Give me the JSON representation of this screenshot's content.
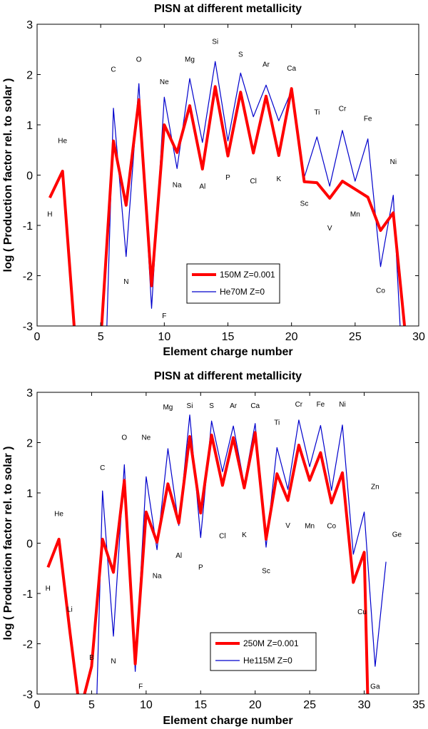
{
  "colors": {
    "series_a": "#ff0000",
    "series_b": "#0000cc",
    "axis": "#000000"
  },
  "chart_data": [
    {
      "type": "line",
      "title": "PISN at different metallicity",
      "xlabel": "Element charge number",
      "ylabel": "log ( Production factor rel. to solar )",
      "xlim": [
        0,
        30
      ],
      "ylim": [
        -3,
        3
      ],
      "xticks": [
        0,
        5,
        10,
        15,
        20,
        25,
        30
      ],
      "yticks": [
        -3,
        -2,
        -1,
        0,
        1,
        2,
        3
      ],
      "legend_position": "bottom-center",
      "series": [
        {
          "name": "150M Z=0.001",
          "color": "#ff0000",
          "points": [
            [
              1,
              -0.45
            ],
            [
              2,
              0.08
            ],
            [
              3,
              -3.3
            ],
            [
              4,
              -3.3
            ],
            [
              5,
              -3.3
            ],
            [
              6,
              0.68
            ],
            [
              7,
              -0.6
            ],
            [
              8,
              1.5
            ],
            [
              9,
              -2.2
            ],
            [
              10,
              1.0
            ],
            [
              11,
              0.45
            ],
            [
              12,
              1.38
            ],
            [
              13,
              0.12
            ],
            [
              14,
              1.76
            ],
            [
              15,
              0.38
            ],
            [
              16,
              1.65
            ],
            [
              17,
              0.44
            ],
            [
              18,
              1.57
            ],
            [
              19,
              0.39
            ],
            [
              20,
              1.72
            ],
            [
              21,
              -0.13
            ],
            [
              22,
              -0.15
            ],
            [
              23,
              -0.46
            ],
            [
              24,
              -0.12
            ],
            [
              25,
              -0.28
            ],
            [
              26,
              -0.44
            ],
            [
              27,
              -1.1
            ],
            [
              28,
              -0.75
            ],
            [
              29,
              -3.3
            ]
          ]
        },
        {
          "name": "He70M Z=0",
          "color": "#0000cc",
          "points": [
            [
              5.45,
              -3.3
            ],
            [
              6,
              1.33
            ],
            [
              7,
              -1.62
            ],
            [
              8,
              1.82
            ],
            [
              9,
              -2.65
            ],
            [
              10,
              1.55
            ],
            [
              11,
              0.13
            ],
            [
              12,
              1.92
            ],
            [
              13,
              0.65
            ],
            [
              14,
              2.26
            ],
            [
              15,
              0.68
            ],
            [
              16,
              2.03
            ],
            [
              17,
              1.16
            ],
            [
              18,
              1.79
            ],
            [
              19,
              1.08
            ],
            [
              20,
              1.68
            ],
            [
              21,
              -0.05
            ],
            [
              22,
              0.76
            ],
            [
              23,
              -0.22
            ],
            [
              24,
              0.89
            ],
            [
              25,
              -0.12
            ],
            [
              26,
              0.72
            ],
            [
              27,
              -1.82
            ],
            [
              28,
              -0.4
            ],
            [
              28.6,
              -3.3
            ]
          ]
        }
      ],
      "element_labels": [
        {
          "text": "H",
          "x": 1,
          "y": -0.78
        },
        {
          "text": "He",
          "x": 2,
          "y": 0.68
        },
        {
          "text": "C",
          "x": 6,
          "y": 2.1
        },
        {
          "text": "N",
          "x": 7,
          "y": -2.12
        },
        {
          "text": "O",
          "x": 8,
          "y": 2.3
        },
        {
          "text": "F",
          "x": 10,
          "y": -2.8
        },
        {
          "text": "Ne",
          "x": 10,
          "y": 1.85
        },
        {
          "text": "Na",
          "x": 11,
          "y": -0.2
        },
        {
          "text": "Mg",
          "x": 12,
          "y": 2.3
        },
        {
          "text": "Al",
          "x": 13,
          "y": -0.23
        },
        {
          "text": "Si",
          "x": 14,
          "y": 2.65
        },
        {
          "text": "P",
          "x": 15,
          "y": -0.05
        },
        {
          "text": "S",
          "x": 16,
          "y": 2.4
        },
        {
          "text": "Cl",
          "x": 17,
          "y": -0.12
        },
        {
          "text": "Ar",
          "x": 18,
          "y": 2.2
        },
        {
          "text": "K",
          "x": 19,
          "y": -0.08
        },
        {
          "text": "Ca",
          "x": 20,
          "y": 2.12
        },
        {
          "text": "Sc",
          "x": 21,
          "y": -0.57
        },
        {
          "text": "Ti",
          "x": 22,
          "y": 1.25
        },
        {
          "text": "V",
          "x": 23,
          "y": -1.06
        },
        {
          "text": "Cr",
          "x": 24,
          "y": 1.32
        },
        {
          "text": "Mn",
          "x": 25,
          "y": -0.78
        },
        {
          "text": "Fe",
          "x": 26,
          "y": 1.12
        },
        {
          "text": "Co",
          "x": 27,
          "y": -2.3
        },
        {
          "text": "Ni",
          "x": 28,
          "y": 0.26
        }
      ]
    },
    {
      "type": "line",
      "title": "PISN at different metallicity",
      "xlabel": "Element charge number",
      "ylabel": "log ( Production factor rel. to solar )",
      "xlim": [
        0,
        35
      ],
      "ylim": [
        -3,
        3
      ],
      "xticks": [
        0,
        5,
        10,
        15,
        20,
        25,
        30,
        35
      ],
      "yticks": [
        -3,
        -2,
        -1,
        0,
        1,
        2,
        3
      ],
      "legend_position": "bottom-center",
      "series": [
        {
          "name": "250M Z=0.001",
          "color": "#ff0000",
          "points": [
            [
              1,
              -0.48
            ],
            [
              2,
              0.08
            ],
            [
              3,
              -1.75
            ],
            [
              3.9,
              -3.3
            ],
            [
              4,
              -3.3
            ],
            [
              5,
              -2.45
            ],
            [
              6,
              0.08
            ],
            [
              7,
              -0.58
            ],
            [
              8,
              1.25
            ],
            [
              9,
              -2.4
            ],
            [
              10,
              0.62
            ],
            [
              11,
              0.02
            ],
            [
              12,
              1.18
            ],
            [
              13,
              0.4
            ],
            [
              14,
              2.12
            ],
            [
              15,
              0.6
            ],
            [
              16,
              2.15
            ],
            [
              17,
              1.15
            ],
            [
              18,
              2.1
            ],
            [
              19,
              1.1
            ],
            [
              20,
              2.2
            ],
            [
              21,
              0.08
            ],
            [
              22,
              1.38
            ],
            [
              23,
              0.85
            ],
            [
              24,
              1.95
            ],
            [
              25,
              1.25
            ],
            [
              26,
              1.8
            ],
            [
              27,
              0.8
            ],
            [
              28,
              1.4
            ],
            [
              29,
              -0.78
            ],
            [
              30,
              -0.18
            ],
            [
              30.35,
              -3.3
            ]
          ]
        },
        {
          "name": "He115M Z=0",
          "color": "#0000cc",
          "points": [
            [
              5.45,
              -3.3
            ],
            [
              6,
              1.04
            ],
            [
              7,
              -1.85
            ],
            [
              8,
              1.56
            ],
            [
              9,
              -2.55
            ],
            [
              10,
              1.32
            ],
            [
              11,
              -0.13
            ],
            [
              12,
              1.88
            ],
            [
              13,
              0.35
            ],
            [
              14,
              2.55
            ],
            [
              15,
              0.11
            ],
            [
              16,
              2.43
            ],
            [
              17,
              1.42
            ],
            [
              18,
              2.33
            ],
            [
              19,
              1.17
            ],
            [
              20,
              2.38
            ],
            [
              21,
              -0.08
            ],
            [
              22,
              1.9
            ],
            [
              23,
              1.07
            ],
            [
              24,
              2.45
            ],
            [
              25,
              1.52
            ],
            [
              26,
              2.34
            ],
            [
              27,
              1.05
            ],
            [
              28,
              2.35
            ],
            [
              29,
              -0.22
            ],
            [
              30,
              0.62
            ],
            [
              31,
              -2.45
            ],
            [
              32,
              -0.37
            ]
          ]
        }
      ],
      "element_labels": [
        {
          "text": "H",
          "x": 1,
          "y": -0.9
        },
        {
          "text": "He",
          "x": 2,
          "y": 0.58
        },
        {
          "text": "Li",
          "x": 3,
          "y": -1.32
        },
        {
          "text": "B",
          "x": 5,
          "y": -2.28
        },
        {
          "text": "C",
          "x": 6,
          "y": 1.5
        },
        {
          "text": "N",
          "x": 7,
          "y": -2.35
        },
        {
          "text": "O",
          "x": 8,
          "y": 2.1
        },
        {
          "text": "F",
          "x": 9.5,
          "y": -2.85
        },
        {
          "text": "Ne",
          "x": 10,
          "y": 2.1
        },
        {
          "text": "Na",
          "x": 11,
          "y": -0.65
        },
        {
          "text": "Mg",
          "x": 12,
          "y": 2.7
        },
        {
          "text": "Al",
          "x": 13,
          "y": -0.25
        },
        {
          "text": "Si",
          "x": 14,
          "y": 2.73
        },
        {
          "text": "P",
          "x": 15,
          "y": -0.48
        },
        {
          "text": "S",
          "x": 16,
          "y": 2.73
        },
        {
          "text": "Cl",
          "x": 17,
          "y": 0.14
        },
        {
          "text": "Ar",
          "x": 18,
          "y": 2.73
        },
        {
          "text": "K",
          "x": 19,
          "y": 0.16
        },
        {
          "text": "Ca",
          "x": 20,
          "y": 2.73
        },
        {
          "text": "Sc",
          "x": 21,
          "y": -0.55
        },
        {
          "text": "Ti",
          "x": 22,
          "y": 2.4
        },
        {
          "text": "V",
          "x": 23,
          "y": 0.35
        },
        {
          "text": "Cr",
          "x": 24,
          "y": 2.76
        },
        {
          "text": "Mn",
          "x": 25,
          "y": 0.34
        },
        {
          "text": "Co",
          "x": 27,
          "y": 0.34
        },
        {
          "text": "Fe",
          "x": 26,
          "y": 2.76
        },
        {
          "text": "Ni",
          "x": 28,
          "y": 2.76
        },
        {
          "text": "Zn",
          "x": 31,
          "y": 1.12
        },
        {
          "text": "Cu",
          "x": 29.8,
          "y": -1.37
        },
        {
          "text": "Ge",
          "x": 33,
          "y": 0.17
        },
        {
          "text": "Ga",
          "x": 31,
          "y": -2.85
        }
      ]
    }
  ]
}
